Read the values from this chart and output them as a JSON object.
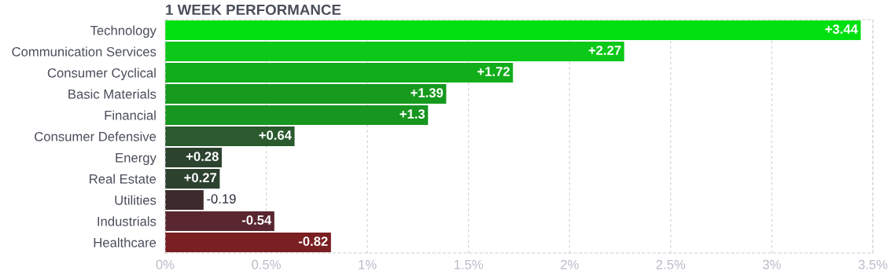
{
  "chart_data": {
    "type": "bar",
    "orientation": "horizontal",
    "title": "1 WEEK PERFORMANCE",
    "categories": [
      "Technology",
      "Communication Services",
      "Consumer Cyclical",
      "Basic Materials",
      "Financial",
      "Consumer Defensive",
      "Energy",
      "Real Estate",
      "Utilities",
      "Industrials",
      "Healthcare"
    ],
    "values": [
      3.44,
      2.27,
      1.72,
      1.39,
      1.3,
      0.64,
      0.28,
      0.27,
      -0.19,
      -0.54,
      -0.82
    ],
    "base": [
      0,
      0,
      0,
      0,
      0,
      0,
      0,
      0,
      0.19,
      0.54,
      0.82
    ],
    "value_labels": [
      "+3.44",
      "+2.27",
      "+1.72",
      "+1.39",
      "+1.3",
      "+0.64",
      "+0.28",
      "+0.27",
      "-0.19",
      "-0.54",
      "-0.82"
    ],
    "colors": [
      "#00e010",
      "#0cc819",
      "#12ad1a",
      "#169a1e",
      "#179620",
      "#2a5a2e",
      "#2c4330",
      "#2d412f",
      "#3d2a2c",
      "#5a2730",
      "#7a1f22"
    ],
    "xlim": [
      0,
      3.5
    ],
    "xticks": [
      {
        "value": 0,
        "label": "0%"
      },
      {
        "value": 0.5,
        "label": "0.5%"
      },
      {
        "value": 1,
        "label": "1%"
      },
      {
        "value": 1.5,
        "label": "1.5%"
      },
      {
        "value": 2,
        "label": "2%"
      },
      {
        "value": 2.5,
        "label": "2.5%"
      },
      {
        "value": 3,
        "label": "3%"
      },
      {
        "value": 3.5,
        "label": "3.5%"
      }
    ],
    "grid": "x"
  }
}
